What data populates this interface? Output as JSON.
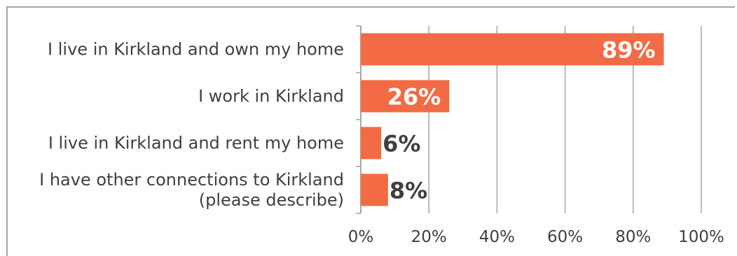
{
  "chart_data": {
    "type": "bar",
    "orientation": "horizontal",
    "categories": [
      [
        "I live in Kirkland and own my home"
      ],
      [
        "I work in Kirkland"
      ],
      [
        "I live in Kirkland and rent my home"
      ],
      [
        "I have other connections to Kirkland",
        "(please describe)"
      ]
    ],
    "values": [
      89,
      26,
      6,
      8
    ],
    "data_labels": [
      "89%",
      "26%",
      "6%",
      "8%"
    ],
    "x_ticks": [
      "0%",
      "20%",
      "40%",
      "60%",
      "80%",
      "100%"
    ],
    "xlim": [
      0,
      100
    ],
    "grid": true,
    "colors": {
      "bar": "#f26b44",
      "grid": "#a6a6a6",
      "label_inside": "#ffffff",
      "label_outside": "#3f3f3f",
      "text": "#3f3f3f"
    }
  }
}
